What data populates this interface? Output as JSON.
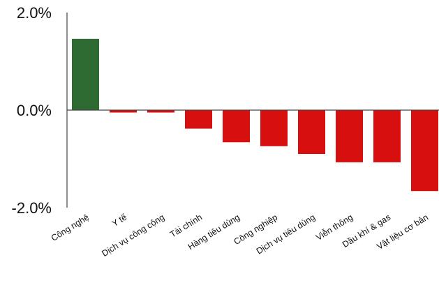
{
  "chart_data": {
    "type": "bar",
    "title": "",
    "xlabel": "",
    "ylabel": "",
    "ylim": [
      -2.0,
      2.0
    ],
    "yticks": [
      "2.0%",
      "0.0%",
      "-2.0%"
    ],
    "ytick_values": [
      2.0,
      0.0,
      -2.0
    ],
    "grid": false,
    "legend": "none",
    "categories": [
      "Công nghệ",
      "Y tế",
      "Dịch vụ công cộng",
      "Tài chính",
      "Hàng tiêu dùng",
      "Công nghiệp",
      "Dịch vụ tiêu dùng",
      "Viễn thông",
      "Dầu khí & gas",
      "Vật liệu cơ bản"
    ],
    "values": [
      1.46,
      -0.05,
      -0.05,
      -0.38,
      -0.66,
      -0.74,
      -0.9,
      -1.07,
      -1.07,
      -1.66
    ],
    "colors": {
      "positive": "#2e6b33",
      "negative": "#d80f0f",
      "axis": "#444444"
    }
  }
}
